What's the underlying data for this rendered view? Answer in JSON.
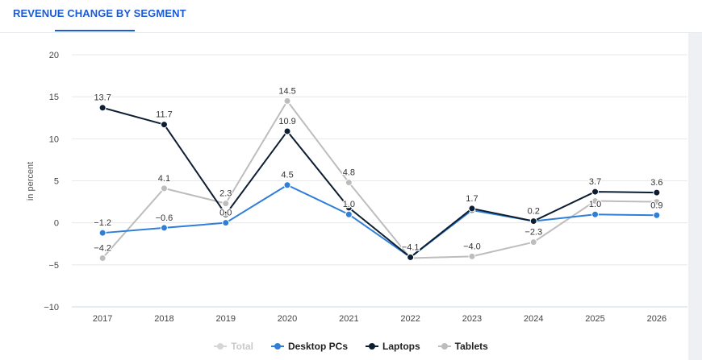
{
  "header": {
    "title": "REVENUE CHANGE BY SEGMENT"
  },
  "chart_data": {
    "type": "line",
    "title": "REVENUE CHANGE BY SEGMENT",
    "xlabel": "",
    "ylabel": "in percent",
    "ylim": [
      -10,
      20
    ],
    "yticks": [
      -10,
      -5,
      0,
      5,
      10,
      15,
      20
    ],
    "categories": [
      "2017",
      "2018",
      "2019",
      "2020",
      "2021",
      "2022",
      "2023",
      "2024",
      "2025",
      "2026"
    ],
    "series": [
      {
        "name": "Total",
        "color": "#c8c8c8",
        "visible": false,
        "values": [
          -1.2,
          -0.6,
          0.0,
          4.5,
          1.0,
          -4.0,
          1.7,
          0.2,
          2.7,
          2.5
        ],
        "labels": []
      },
      {
        "name": "Desktop PCs",
        "color": "#2f7ed8",
        "visible": true,
        "values": [
          -1.2,
          -0.6,
          0.0,
          4.5,
          1.0,
          -4.1,
          1.5,
          0.2,
          1.0,
          0.9
        ],
        "labels": [
          "−1.2",
          "−0.6",
          "0.0",
          "4.5",
          "1.0",
          "",
          "",
          "",
          "1.0",
          "0.9"
        ]
      },
      {
        "name": "Laptops",
        "color": "#0d1e33",
        "visible": true,
        "values": [
          13.7,
          11.7,
          1.0,
          10.9,
          1.8,
          -4.1,
          1.7,
          0.2,
          3.7,
          3.6
        ],
        "labels": [
          "13.7",
          "11.7",
          "",
          "10.9",
          "",
          "−4.1",
          "1.7",
          "0.2",
          "3.7",
          "3.6"
        ]
      },
      {
        "name": "Tablets",
        "color": "#bdbdbd",
        "visible": true,
        "values": [
          -4.2,
          4.1,
          2.3,
          14.5,
          4.8,
          -4.2,
          -4.0,
          -2.3,
          2.6,
          2.5
        ],
        "labels": [
          "−4.2",
          "4.1",
          "2.3",
          "14.5",
          "4.8",
          "",
          "−4.0",
          "−2.3",
          "",
          ""
        ]
      }
    ]
  }
}
